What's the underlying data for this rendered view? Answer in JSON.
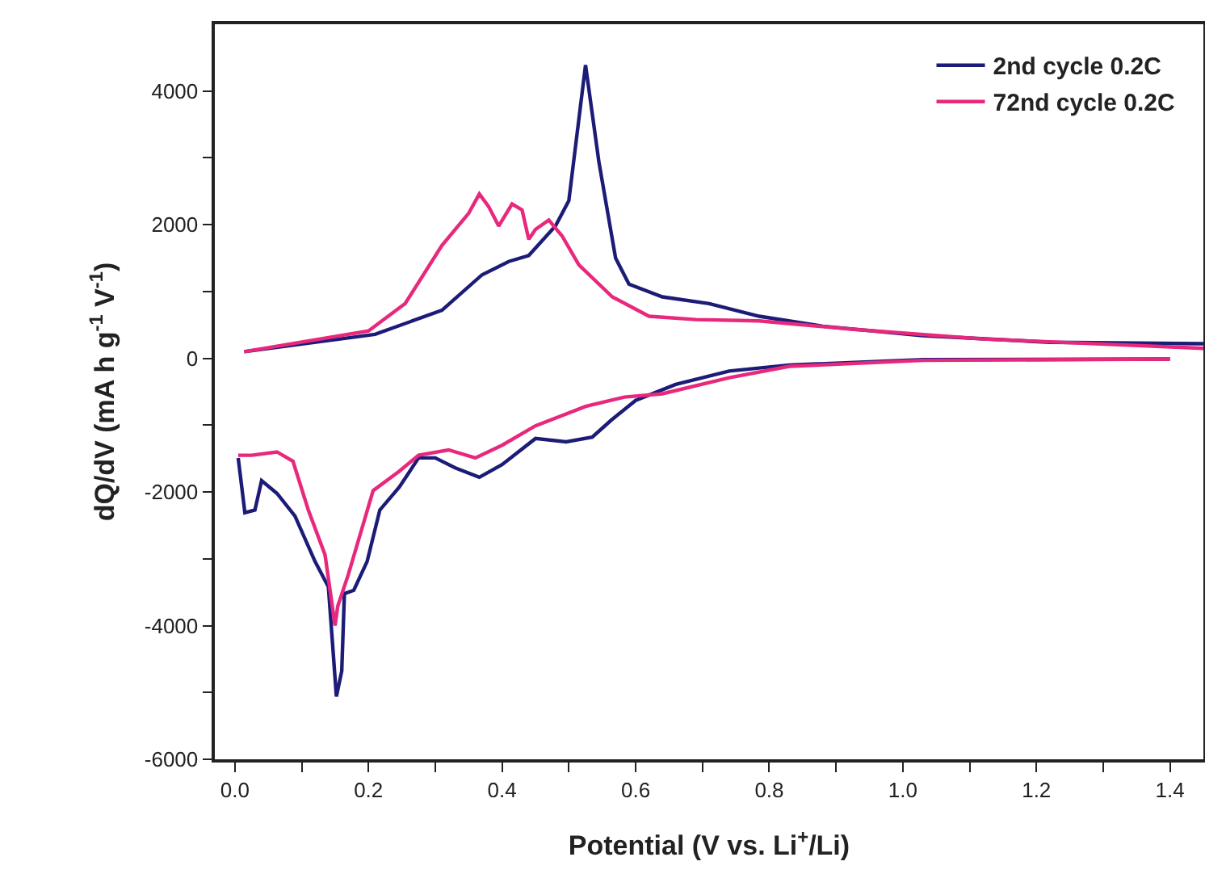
{
  "chart_data": {
    "type": "line",
    "xlabel": "Potential (V vs. Li$^{+}$/Li)",
    "ylabel": "dQ/dV (mA h g$^{-1}$ V$^{-1}$)",
    "xlim": [
      -0.03,
      1.45
    ],
    "ylim": [
      -6000,
      5000
    ],
    "xticks": [
      {
        "value": 0,
        "label": "0.0"
      },
      {
        "value": 0.1,
        "label": null
      },
      {
        "value": 0.2,
        "label": "0.2"
      },
      {
        "value": 0.3,
        "label": null
      },
      {
        "value": 0.4,
        "label": "0.4"
      },
      {
        "value": 0.5,
        "label": null
      },
      {
        "value": 0.6,
        "label": "0.6"
      },
      {
        "value": 0.7,
        "label": null
      },
      {
        "value": 0.8,
        "label": "0.8"
      },
      {
        "value": 0.9,
        "label": null
      },
      {
        "value": 1.0,
        "label": "1.0"
      },
      {
        "value": 1.1,
        "label": null
      },
      {
        "value": 1.2,
        "label": "1.2"
      },
      {
        "value": 1.3,
        "label": null
      },
      {
        "value": 1.4,
        "label": "1.4"
      }
    ],
    "yticks": [
      -6000,
      {
        "value": -5000,
        "label": null
      },
      -4000,
      {
        "value": -3000,
        "label": null
      },
      -2000,
      {
        "value": -1000,
        "label": null
      },
      0,
      {
        "value": 1000,
        "label": null
      },
      2000,
      {
        "value": 3000,
        "label": null
      },
      4000
    ],
    "grid": false,
    "legend": "top right",
    "line_style": "solid",
    "marker": "none",
    "series": [
      {
        "name": "2nd cycle 0.2C",
        "color": "#1c1c78",
        "x": [
          0.014,
          0.21,
          0.31,
          0.37,
          0.41,
          0.44,
          0.48,
          0.5,
          0.525,
          0.545,
          0.57,
          0.59,
          0.64,
          0.71,
          0.785,
          0.88,
          1.03,
          1.22,
          1.45,
          1.42,
          1.4,
          1.03,
          0.83,
          0.74,
          0.66,
          0.6,
          0.564,
          0.535,
          0.496,
          0.45,
          0.4,
          0.366,
          0.33,
          0.3,
          0.275,
          0.246,
          0.217,
          0.198,
          0.178,
          0.164,
          0.16,
          0.152,
          0.14,
          0.12,
          0.09,
          0.063,
          0.04,
          0.03,
          0.015,
          0.005
        ],
        "values": [
          100,
          360,
          720,
          1250,
          1450,
          1540,
          1980,
          2360,
          4390,
          2940,
          1500,
          1110,
          920,
          820,
          630,
          480,
          340,
          240,
          220,
          null,
          -10,
          -20,
          -100,
          -190,
          -390,
          -630,
          -920,
          -1180,
          -1250,
          -1200,
          -1590,
          -1780,
          -1640,
          -1490,
          -1490,
          -1930,
          -2270,
          -3040,
          -3470,
          -3520,
          -4680,
          -5060,
          -3420,
          -3040,
          -2360,
          -2020,
          -1830,
          -2270,
          -2310,
          -1490
        ]
      },
      {
        "name": "72nd cycle 0.2C",
        "color": "#e8287c",
        "x": [
          0.014,
          0.2,
          0.255,
          0.31,
          0.35,
          0.366,
          0.38,
          0.395,
          0.415,
          0.43,
          0.44,
          0.45,
          0.47,
          0.49,
          0.515,
          0.565,
          0.62,
          0.69,
          0.785,
          0.93,
          1.12,
          1.45,
          1.42,
          1.4,
          1.03,
          0.83,
          0.74,
          0.64,
          0.583,
          0.525,
          0.45,
          0.4,
          0.36,
          0.32,
          0.275,
          0.246,
          0.207,
          0.17,
          0.154,
          0.15,
          0.135,
          0.11,
          0.087,
          0.063,
          0.025,
          0.005
        ],
        "values": [
          100,
          410,
          820,
          1690,
          2170,
          2460,
          2270,
          1980,
          2310,
          2220,
          1780,
          1930,
          2070,
          1830,
          1400,
          920,
          630,
          580,
          560,
          430,
          290,
          150,
          null,
          -10,
          -30,
          -120,
          -290,
          -530,
          -580,
          -720,
          -1010,
          -1300,
          -1490,
          -1370,
          -1450,
          -1690,
          -1980,
          -3230,
          -3710,
          -4000,
          -2940,
          -2270,
          -1540,
          -1400,
          -1450,
          -1450
        ]
      }
    ]
  }
}
